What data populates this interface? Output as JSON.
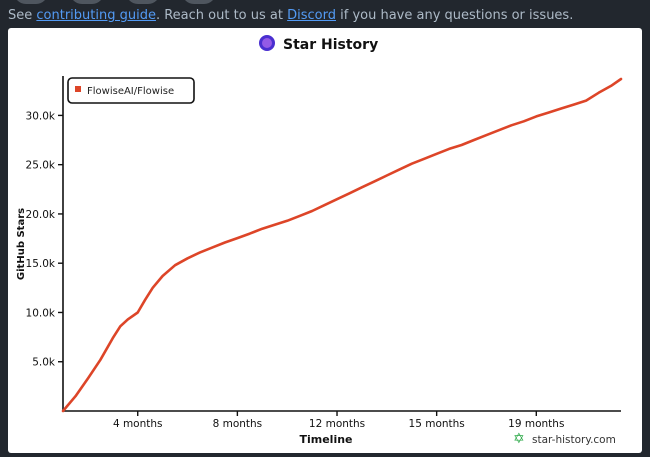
{
  "header": {
    "prefix": "See ",
    "link1": "contributing guide",
    "middle": ". Reach out to us at ",
    "link2": "Discord",
    "suffix": " if you have any questions or issues."
  },
  "chart_data": {
    "type": "line",
    "title": "Star History",
    "xlabel": "Timeline",
    "ylabel": "GitHub Stars",
    "watermark": "star-history.com",
    "legend": "top-left",
    "grid": false,
    "series": [
      {
        "name": "FlowiseAI/Flowise",
        "color": "#dd4528",
        "x": [
          0,
          0.5,
          1,
          1.5,
          2,
          2.3,
          2.6,
          3,
          3.3,
          3.6,
          4,
          4.5,
          5,
          5.5,
          6,
          6.5,
          7,
          7.5,
          8,
          8.5,
          9,
          9.5,
          10,
          10.5,
          11,
          11.5,
          12,
          12.5,
          13,
          13.5,
          14,
          14.5,
          15,
          15.5,
          16,
          16.5,
          17,
          17.5,
          18,
          18.5,
          19,
          19.5,
          20,
          20.5,
          21,
          21.5,
          22,
          22.4
        ],
        "y": [
          0,
          1500,
          3300,
          5200,
          7400,
          8600,
          9300,
          10000,
          11300,
          12500,
          13700,
          14800,
          15500,
          16100,
          16600,
          17100,
          17550,
          18000,
          18500,
          18900,
          19300,
          19800,
          20300,
          20900,
          21500,
          22100,
          22700,
          23300,
          23900,
          24500,
          25100,
          25600,
          26100,
          26600,
          27000,
          27500,
          28000,
          28500,
          29000,
          29400,
          29900,
          30300,
          30700,
          31100,
          31500,
          32300,
          33000,
          33700
        ]
      }
    ],
    "xticks": [
      {
        "v": 3,
        "label": "4 months"
      },
      {
        "v": 7,
        "label": "8 months"
      },
      {
        "v": 11,
        "label": "12 months"
      },
      {
        "v": 15,
        "label": "15 months"
      },
      {
        "v": 19,
        "label": "19 months"
      }
    ],
    "yticks": [
      {
        "v": 5000,
        "label": "5.0k"
      },
      {
        "v": 10000,
        "label": "10.0k"
      },
      {
        "v": 15000,
        "label": "15.0k"
      },
      {
        "v": 20000,
        "label": "20.0k"
      },
      {
        "v": 25000,
        "label": "25.0k"
      },
      {
        "v": 30000,
        "label": "30.0k"
      }
    ],
    "xlim": [
      0,
      22.4
    ],
    "ylim": [
      0,
      34000
    ]
  }
}
